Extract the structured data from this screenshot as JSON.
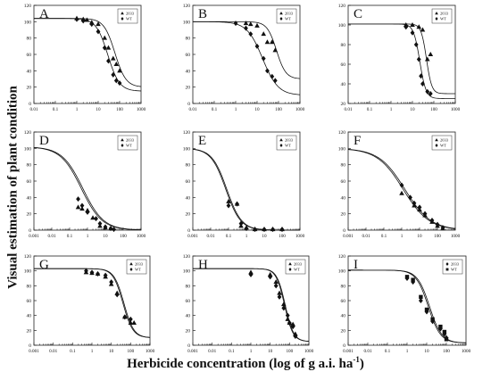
{
  "figure": {
    "ylabel": "Visual estimation of plant condition",
    "xlabel_main": "Herbicide concentration  (log of g a.i. ha",
    "xlabel_sup": "-1",
    "xlabel_end": ")"
  },
  "chart_data": [
    {
      "type": "scatter",
      "panel": "A",
      "xscale": "log",
      "xlim": [
        0.01,
        1000
      ],
      "ylim": [
        0,
        120
      ],
      "yticks": [
        0,
        20,
        40,
        60,
        80,
        100,
        120
      ],
      "xticks": [
        "0.01",
        "0.1",
        "1",
        "10",
        "100",
        "1000"
      ],
      "legend": [
        "2033",
        "WT"
      ],
      "legend_position": "top-right",
      "series": [
        {
          "name": "2033",
          "marker": "triangle",
          "x": [
            1,
            2,
            3,
            5,
            10,
            20,
            30,
            50,
            70,
            100
          ],
          "y": [
            104,
            103,
            102,
            99,
            97,
            80,
            68,
            55,
            48,
            40
          ],
          "curve": {
            "top": 104,
            "bottom": 20,
            "ed50": 60,
            "slope": 1.7
          }
        },
        {
          "name": "WT",
          "marker": "diamond",
          "x": [
            1,
            2,
            5,
            10,
            20,
            30,
            50,
            70,
            100
          ],
          "y": [
            103,
            101,
            97,
            88,
            68,
            52,
            35,
            28,
            25
          ],
          "curve": {
            "top": 104,
            "bottom": 15,
            "ed50": 28,
            "slope": 1.6
          }
        }
      ]
    },
    {
      "type": "scatter",
      "panel": "B",
      "xscale": "log",
      "xlim": [
        0.01,
        1000
      ],
      "ylim": [
        0,
        120
      ],
      "yticks": [
        0,
        20,
        40,
        60,
        80,
        100,
        120
      ],
      "xticks": [
        "0.01",
        "0.1",
        "1",
        "10",
        "100",
        "1000"
      ],
      "legend": [
        "2033",
        "WT"
      ],
      "legend_position": "top-right",
      "series": [
        {
          "name": "2033",
          "marker": "triangle",
          "x": [
            3,
            5,
            10,
            20,
            30,
            50,
            70
          ],
          "y": [
            98,
            97,
            95,
            85,
            75,
            75,
            65
          ],
          "curve": {
            "top": 100,
            "bottom": 30,
            "ed50": 80,
            "slope": 2.0
          }
        },
        {
          "name": "WT",
          "marker": "diamond",
          "x": [
            1,
            3,
            5,
            10,
            20,
            30,
            50,
            70
          ],
          "y": [
            98,
            92,
            85,
            70,
            55,
            40,
            33,
            28
          ],
          "curve": {
            "top": 100,
            "bottom": 10,
            "ed50": 18,
            "slope": 1.2
          }
        }
      ]
    },
    {
      "type": "scatter",
      "panel": "C",
      "xscale": "log",
      "xlim": [
        0.01,
        1000
      ],
      "ylim": [
        20,
        120
      ],
      "yticks": [
        20,
        40,
        60,
        80,
        100,
        120
      ],
      "xticks": [
        "0.01",
        "0.1",
        "1",
        "10",
        "100",
        "1000"
      ],
      "legend": [
        "2033",
        "WT"
      ],
      "legend_position": "top-right",
      "series": [
        {
          "name": "2033",
          "marker": "triangle",
          "x": [
            5,
            10,
            20,
            30,
            50,
            70
          ],
          "y": [
            100,
            100,
            98,
            95,
            65,
            70
          ],
          "curve": {
            "top": 101,
            "bottom": 30,
            "ed50": 45,
            "slope": 3.5
          }
        },
        {
          "name": "WT",
          "marker": "diamond",
          "x": [
            5,
            10,
            15,
            20,
            25,
            30,
            50,
            70
          ],
          "y": [
            98,
            92,
            80,
            65,
            48,
            40,
            32,
            30
          ],
          "curve": {
            "top": 101,
            "bottom": 25,
            "ed50": 22,
            "slope": 3.0
          }
        }
      ]
    },
    {
      "type": "scatter",
      "panel": "D",
      "xscale": "log",
      "xlim": [
        0.001,
        1000
      ],
      "ylim": [
        0,
        120
      ],
      "yticks": [
        0,
        20,
        40,
        60,
        80,
        100,
        120
      ],
      "xticks": [
        "0.001",
        "0.01",
        "0.1",
        "1",
        "10",
        "100",
        "1000"
      ],
      "legend": [
        "2033",
        "WT"
      ],
      "legend_position": "top-right",
      "series": [
        {
          "name": "2033",
          "marker": "triangle",
          "x": [
            0.3,
            0.5,
            1,
            2,
            5,
            10,
            20
          ],
          "y": [
            28,
            26,
            24,
            15,
            5,
            3,
            2
          ],
          "curve": {
            "top": 102,
            "bottom": 0,
            "ed50": 0.45,
            "slope": 0.75
          }
        },
        {
          "name": "WT",
          "marker": "diamond",
          "x": [
            0.3,
            0.5,
            1,
            3,
            5,
            10,
            20,
            30
          ],
          "y": [
            38,
            30,
            22,
            14,
            8,
            4,
            2,
            1
          ],
          "curve": {
            "top": 102,
            "bottom": 0,
            "ed50": 0.55,
            "slope": 0.75
          }
        }
      ]
    },
    {
      "type": "scatter",
      "panel": "E",
      "xscale": "log",
      "xlim": [
        0.001,
        1000
      ],
      "ylim": [
        0,
        120
      ],
      "yticks": [
        0,
        20,
        40,
        60,
        80,
        100,
        120
      ],
      "xticks": [
        "0.001",
        "0.01",
        "0.1",
        "1",
        "10",
        "100",
        "1000"
      ],
      "legend": [
        "2033",
        "WT"
      ],
      "legend_position": "top-right",
      "series": [
        {
          "name": "2033",
          "marker": "triangle",
          "x": [
            0.1,
            0.3,
            0.5,
            1,
            3,
            10,
            30,
            100
          ],
          "y": [
            35,
            32,
            5,
            3,
            1,
            1,
            1,
            1
          ],
          "curve": {
            "top": 100,
            "bottom": 0,
            "ed50": 0.07,
            "slope": 1.05
          }
        },
        {
          "name": "WT",
          "marker": "diamond",
          "x": [
            0.1,
            0.3,
            0.5,
            1,
            3,
            10,
            30,
            100
          ],
          "y": [
            30,
            32,
            8,
            2,
            1,
            1,
            1,
            1
          ],
          "curve": {
            "top": 100,
            "bottom": 0,
            "ed50": 0.08,
            "slope": 1.05
          }
        }
      ]
    },
    {
      "type": "scatter",
      "panel": "F",
      "xscale": "log",
      "xlim": [
        0.001,
        1000
      ],
      "ylim": [
        0,
        120
      ],
      "yticks": [
        0,
        20,
        40,
        60,
        80,
        100,
        120
      ],
      "xticks": [
        "0.001",
        "0.01",
        "0.1",
        "1",
        "10",
        "100",
        "1000"
      ],
      "legend": [
        "2033",
        "WT"
      ],
      "legend_position": "top-right",
      "series": [
        {
          "name": "2033",
          "marker": "triangle",
          "x": [
            1,
            5,
            10,
            20,
            50,
            100,
            200
          ],
          "y": [
            45,
            30,
            25,
            18,
            10,
            5,
            2
          ],
          "curve": {
            "top": 100,
            "bottom": 0,
            "ed50": 1.2,
            "slope": 0.6
          }
        },
        {
          "name": "WT",
          "marker": "diamond",
          "x": [
            1,
            3,
            5,
            10,
            20,
            50,
            100,
            200
          ],
          "y": [
            55,
            40,
            33,
            28,
            20,
            12,
            7,
            3
          ],
          "curve": {
            "top": 100,
            "bottom": 0,
            "ed50": 1.5,
            "slope": 0.6
          }
        }
      ]
    },
    {
      "type": "scatter",
      "panel": "G",
      "xscale": "log",
      "xlim": [
        0.001,
        1000
      ],
      "ylim": [
        0,
        120
      ],
      "yticks": [
        0,
        20,
        40,
        60,
        80,
        100,
        120
      ],
      "xticks": [
        "0.001",
        "0.01",
        "0.1",
        "1",
        "10",
        "100",
        "1000"
      ],
      "legend": [
        "2033",
        "WT"
      ],
      "legend_position": "top-right",
      "series": [
        {
          "name": "2033",
          "marker": "triangle",
          "x": [
            0.5,
            1,
            2,
            5,
            10,
            20,
            50,
            100,
            150
          ],
          "y": [
            98,
            97,
            96,
            92,
            82,
            70,
            38,
            30,
            30
          ],
          "curve": {
            "top": 103,
            "bottom": 10,
            "ed50": 45,
            "slope": 1.7
          }
        },
        {
          "name": "WT",
          "marker": "diamond",
          "x": [
            0.5,
            1,
            2,
            5,
            10,
            20,
            50,
            100
          ],
          "y": [
            100,
            98,
            96,
            94,
            85,
            68,
            38,
            35
          ],
          "curve": {
            "top": 103,
            "bottom": 10,
            "ed50": 40,
            "slope": 1.7
          }
        }
      ]
    },
    {
      "type": "scatter",
      "panel": "H",
      "xscale": "log",
      "xlim": [
        0.001,
        1000
      ],
      "ylim": [
        0,
        120
      ],
      "yticks": [
        0,
        20,
        40,
        60,
        80,
        100,
        120
      ],
      "xticks": [
        "0.001",
        "0.01",
        "0.1",
        "1",
        "10",
        "100",
        "1000"
      ],
      "legend": [
        "2033",
        "WT"
      ],
      "legend_position": "top-right",
      "series": [
        {
          "name": "2033",
          "marker": "triangle",
          "x": [
            1,
            10,
            20,
            30,
            50,
            80,
            100,
            150,
            200
          ],
          "y": [
            98,
            95,
            85,
            70,
            55,
            35,
            30,
            28,
            15
          ],
          "curve": {
            "top": 103,
            "bottom": 5,
            "ed50": 60,
            "slope": 2.0
          }
        },
        {
          "name": "WT",
          "marker": "diamond",
          "x": [
            1,
            10,
            20,
            30,
            50,
            80,
            100,
            150,
            200
          ],
          "y": [
            95,
            92,
            80,
            65,
            50,
            40,
            30,
            25,
            12
          ],
          "curve": {
            "top": 103,
            "bottom": 5,
            "ed50": 55,
            "slope": 2.0
          }
        }
      ]
    },
    {
      "type": "scatter",
      "panel": "I",
      "xscale": "log",
      "xlim": [
        0.001,
        1000
      ],
      "ylim": [
        0,
        120
      ],
      "yticks": [
        0,
        20,
        40,
        60,
        80,
        100,
        120
      ],
      "xticks": [
        "0.001",
        "0.01",
        "0.1",
        "1",
        "10",
        "100",
        "1000"
      ],
      "legend": [
        "2033",
        "WT"
      ],
      "legend_position": "top-right",
      "series": [
        {
          "name": "2033",
          "marker": "diamond",
          "x": [
            1,
            2,
            5,
            10,
            20,
            50,
            80,
            100
          ],
          "y": [
            90,
            85,
            60,
            45,
            32,
            22,
            15,
            10
          ],
          "curve": {
            "top": 101,
            "bottom": 3,
            "ed50": 12,
            "slope": 1.4
          }
        },
        {
          "name": "WT",
          "marker": "square",
          "x": [
            1,
            2,
            5,
            10,
            20,
            50,
            80,
            100
          ],
          "y": [
            92,
            88,
            65,
            48,
            35,
            25,
            18,
            8
          ],
          "curve": {
            "top": 101,
            "bottom": 3,
            "ed50": 14,
            "slope": 1.4
          }
        }
      ]
    }
  ]
}
